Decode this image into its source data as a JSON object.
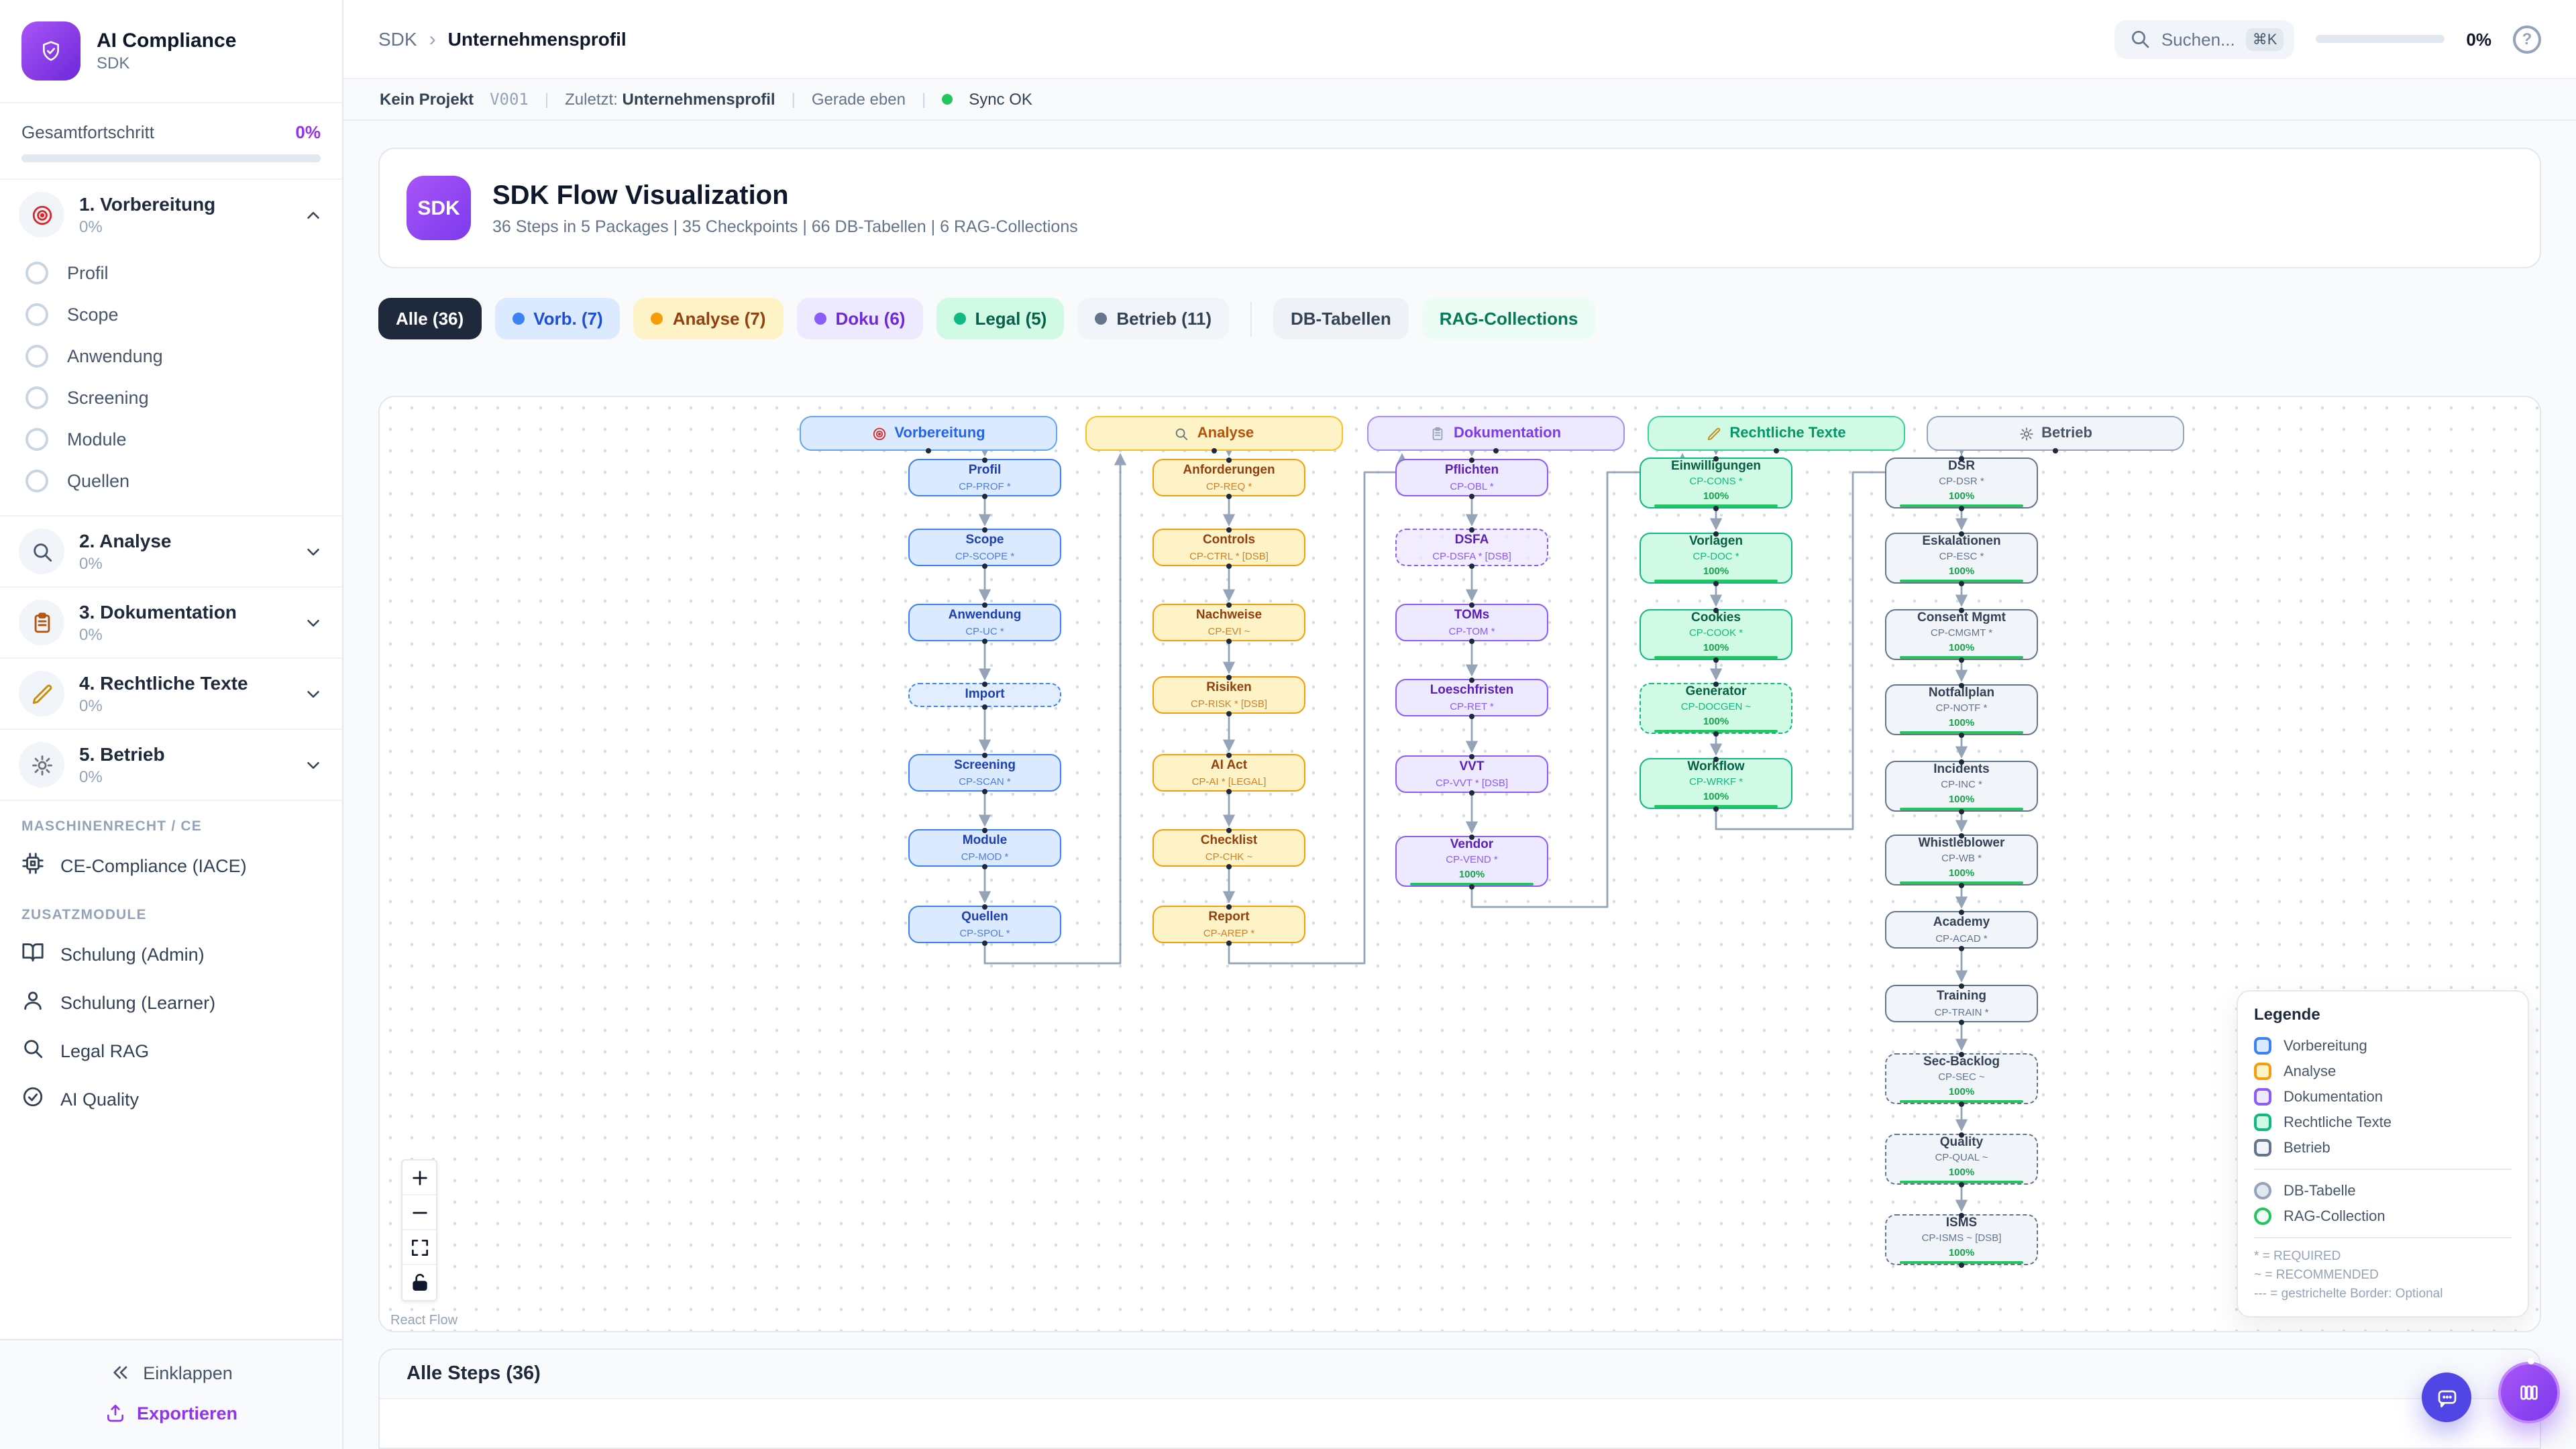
{
  "sidebar": {
    "app_title": "AI Compliance",
    "app_subtitle": "SDK",
    "progress_label": "Gesamtfortschritt",
    "progress_value": "0%",
    "sections": [
      {
        "title": "1. Vorbereitung",
        "pct": "0%",
        "icon": "target-icon",
        "icon_color": "#dc2626",
        "expanded": true,
        "items": [
          "Profil",
          "Scope",
          "Anwendung",
          "Screening",
          "Module",
          "Quellen"
        ]
      },
      {
        "title": "2. Analyse",
        "pct": "0%",
        "icon": "magnifier-icon",
        "icon_color": "#475569",
        "expanded": false,
        "items": []
      },
      {
        "title": "3. Dokumentation",
        "pct": "0%",
        "icon": "clipboard-icon",
        "icon_color": "#b45309",
        "expanded": false,
        "items": []
      },
      {
        "title": "4. Rechtliche Texte",
        "pct": "0%",
        "icon": "pencil-icon",
        "icon_color": "#ca8a04",
        "expanded": false,
        "items": []
      },
      {
        "title": "5. Betrieb",
        "pct": "0%",
        "icon": "gear-icon",
        "icon_color": "#6b7280",
        "expanded": false,
        "items": []
      }
    ],
    "maschinenrecht_label": "MASCHINENRECHT / CE",
    "ce_item": {
      "label": "CE-Compliance (IACE)",
      "icon": "cpu-icon"
    },
    "zusatz_label": "ZUSATZMODULE",
    "zusatz_items": [
      {
        "label": "Schulung (Admin)",
        "icon": "book-open-icon"
      },
      {
        "label": "Schulung (Learner)",
        "icon": "user-icon"
      },
      {
        "label": "Legal RAG",
        "icon": "search-icon"
      },
      {
        "label": "AI Quality",
        "icon": "check-circle-icon"
      }
    ],
    "collapse_label": "Einklappen",
    "export_label": "Exportieren"
  },
  "topbar": {
    "breadcrumb_parent": "SDK",
    "breadcrumb_current": "Unternehmensprofil",
    "search_placeholder": "Suchen...",
    "search_kbd": "⌘K",
    "progress_value": "0%"
  },
  "statusbar": {
    "project": "Kein Projekt",
    "version": "V001",
    "last_label": "Zuletzt:",
    "last_value": "Unternehmensprofil",
    "time": "Gerade eben",
    "sync": "Sync OK"
  },
  "header_card": {
    "badge": "SDK",
    "title": "SDK Flow Visualization",
    "subtitle": "36 Steps in 5 Packages | 35 Checkpoints | 66 DB-Tabellen | 6 RAG-Collections"
  },
  "filters": [
    {
      "label": "Alle (36)",
      "bg": "#1e293b",
      "color": "#ffffff",
      "dot": null,
      "divider_after": false
    },
    {
      "label": "Vorb. (7)",
      "bg": "#dbeafe",
      "color": "#1d4ed8",
      "dot": "#3b82f6",
      "divider_after": false
    },
    {
      "label": "Analyse (7)",
      "bg": "#fef3c7",
      "color": "#92400e",
      "dot": "#f59e0b",
      "divider_after": false
    },
    {
      "label": "Doku (6)",
      "bg": "#ede9fe",
      "color": "#6d28d9",
      "dot": "#8b5cf6",
      "divider_after": false
    },
    {
      "label": "Legal (5)",
      "bg": "#d1fae5",
      "color": "#065f46",
      "dot": "#10b981",
      "divider_after": false
    },
    {
      "label": "Betrieb (11)",
      "bg": "#f1f5f9",
      "color": "#334155",
      "dot": "#64748b",
      "divider_after": true
    },
    {
      "label": "DB-Tabellen",
      "bg": "#eef2f6",
      "color": "#334155",
      "dot": null,
      "divider_after": false
    },
    {
      "label": "RAG-Collections",
      "bg": "#ecfdf5",
      "color": "#047857",
      "dot": null,
      "divider_after": false
    }
  ],
  "flow": {
    "packages": [
      {
        "title": "Vorbereitung",
        "icon": "target-icon",
        "theme": {
          "bg": "#dbeafe",
          "border": "#3b82f6",
          "hborder": "#60a5fa",
          "text": "#1e40af",
          "muted": "#4f7fd9",
          "htext": "#2563eb",
          "hicon": "#dc2626"
        },
        "steps": [
          {
            "label": "Profil",
            "code": "CP-PROF *",
            "dashed": false,
            "progress": null
          },
          {
            "label": "Scope",
            "code": "CP-SCOPE *",
            "dashed": false,
            "progress": null
          },
          {
            "label": "Anwendung",
            "code": "CP-UC *",
            "dashed": false,
            "progress": null
          },
          {
            "label": "Import",
            "code": null,
            "dashed": true,
            "progress": null
          },
          {
            "label": "Screening",
            "code": "CP-SCAN *",
            "dashed": false,
            "progress": null
          },
          {
            "label": "Module",
            "code": "CP-MOD *",
            "dashed": false,
            "progress": null
          },
          {
            "label": "Quellen",
            "code": "CP-SPOL *",
            "dashed": false,
            "progress": null
          }
        ]
      },
      {
        "title": "Analyse",
        "icon": "magnifier-icon",
        "theme": {
          "bg": "#fef3c7",
          "border": "#f59e0b",
          "hborder": "#fbbf24",
          "text": "#92400e",
          "muted": "#c9822e",
          "htext": "#b45309",
          "hicon": "#64748b"
        },
        "steps": [
          {
            "label": "Anforderungen",
            "code": "CP-REQ *",
            "dashed": false,
            "progress": null
          },
          {
            "label": "Controls",
            "code": "CP-CTRL * [DSB]",
            "dashed": false,
            "progress": null
          },
          {
            "label": "Nachweise",
            "code": "CP-EVI ~",
            "dashed": false,
            "progress": null
          },
          {
            "label": "Risiken",
            "code": "CP-RISK * [DSB]",
            "dashed": false,
            "progress": null
          },
          {
            "label": "AI Act",
            "code": "CP-AI * [LEGAL]",
            "dashed": false,
            "progress": null
          },
          {
            "label": "Checklist",
            "code": "CP-CHK ~",
            "dashed": false,
            "progress": null
          },
          {
            "label": "Report",
            "code": "CP-AREP *",
            "dashed": false,
            "progress": null
          }
        ]
      },
      {
        "title": "Dokumentation",
        "icon": "clipboard-icon",
        "theme": {
          "bg": "#ede9fe",
          "border": "#8b5cf6",
          "hborder": "#a78bfa",
          "text": "#5b21b6",
          "muted": "#8b5cf6",
          "htext": "#7c3aed",
          "hicon": "#94a3b8"
        },
        "steps": [
          {
            "label": "Pflichten",
            "code": "CP-OBL *",
            "dashed": false,
            "progress": null
          },
          {
            "label": "DSFA",
            "code": "CP-DSFA * [DSB]",
            "dashed": true,
            "progress": null
          },
          {
            "label": "TOMs",
            "code": "CP-TOM *",
            "dashed": false,
            "progress": null
          },
          {
            "label": "Loeschfristen",
            "code": "CP-RET *",
            "dashed": false,
            "progress": null
          },
          {
            "label": "VVT",
            "code": "CP-VVT * [DSB]",
            "dashed": false,
            "progress": null
          },
          {
            "label": "Vendor",
            "code": "CP-VEND *",
            "dashed": false,
            "progress": "100%"
          }
        ]
      },
      {
        "title": "Rechtliche Texte",
        "icon": "pencil-icon",
        "theme": {
          "bg": "#d1fae5",
          "border": "#10b981",
          "hborder": "#34d399",
          "text": "#065f46",
          "muted": "#10b981",
          "htext": "#059669",
          "hicon": "#ca8a04"
        },
        "steps": [
          {
            "label": "Einwilligungen",
            "code": "CP-CONS *",
            "dashed": false,
            "progress": "100%"
          },
          {
            "label": "Vorlagen",
            "code": "CP-DOC *",
            "dashed": false,
            "progress": "100%"
          },
          {
            "label": "Cookies",
            "code": "CP-COOK *",
            "dashed": false,
            "progress": "100%"
          },
          {
            "label": "Generator",
            "code": "CP-DOCGEN ~",
            "dashed": true,
            "progress": "100%"
          },
          {
            "label": "Workflow",
            "code": "CP-WRKF *",
            "dashed": false,
            "progress": "100%"
          }
        ]
      },
      {
        "title": "Betrieb",
        "icon": "gear-icon",
        "theme": {
          "bg": "#f1f5f9",
          "border": "#64748b",
          "hborder": "#94a3b8",
          "text": "#334155",
          "muted": "#64748b",
          "htext": "#475569",
          "hicon": "#6b7280"
        },
        "steps": [
          {
            "label": "DSR",
            "code": "CP-DSR *",
            "dashed": false,
            "progress": "100%"
          },
          {
            "label": "Eskalationen",
            "code": "CP-ESC *",
            "dashed": false,
            "progress": "100%"
          },
          {
            "label": "Consent Mgmt",
            "code": "CP-CMGMT *",
            "dashed": false,
            "progress": "100%"
          },
          {
            "label": "Notfallplan",
            "code": "CP-NOTF *",
            "dashed": false,
            "progress": "100%"
          },
          {
            "label": "Incidents",
            "code": "CP-INC *",
            "dashed": false,
            "progress": "100%"
          },
          {
            "label": "Whistleblower",
            "code": "CP-WB *",
            "dashed": false,
            "progress": "100%"
          },
          {
            "label": "Academy",
            "code": "CP-ACAD *",
            "dashed": false,
            "progress": null
          },
          {
            "label": "Training",
            "code": "CP-TRAIN *",
            "dashed": false,
            "progress": null
          },
          {
            "label": "Sec-Backlog",
            "code": "CP-SEC ~",
            "dashed": true,
            "progress": "100%"
          },
          {
            "label": "Quality",
            "code": "CP-QUAL ~",
            "dashed": true,
            "progress": "100%"
          },
          {
            "label": "ISMS",
            "code": "CP-ISMS ~ [DSB]",
            "dashed": true,
            "progress": "100%"
          }
        ]
      }
    ],
    "legend": {
      "title": "Legende",
      "package_items": [
        {
          "label": "Vorbereitung",
          "bg": "#dbeafe",
          "border": "#3b82f6"
        },
        {
          "label": "Analyse",
          "bg": "#fef3c7",
          "border": "#f59e0b"
        },
        {
          "label": "Dokumentation",
          "bg": "#ede9fe",
          "border": "#8b5cf6"
        },
        {
          "label": "Rechtliche Texte",
          "bg": "#d1fae5",
          "border": "#10b981"
        },
        {
          "label": "Betrieb",
          "bg": "#f1f5f9",
          "border": "#64748b"
        }
      ],
      "node_items": [
        {
          "label": "DB-Tabelle",
          "bg": "#e2e8f0",
          "border": "#94a3b8"
        },
        {
          "label": "RAG-Collection",
          "bg": "#f0fdf4",
          "border": "#22c55e"
        }
      ],
      "notes": [
        "* = REQUIRED",
        "~ = RECOMMENDED",
        "--- = gestrichelte Border: Optional"
      ]
    },
    "attribution": "React Flow",
    "edge_color": "#94a3b8"
  },
  "steps_card": {
    "title": "Alle Steps (36)"
  }
}
